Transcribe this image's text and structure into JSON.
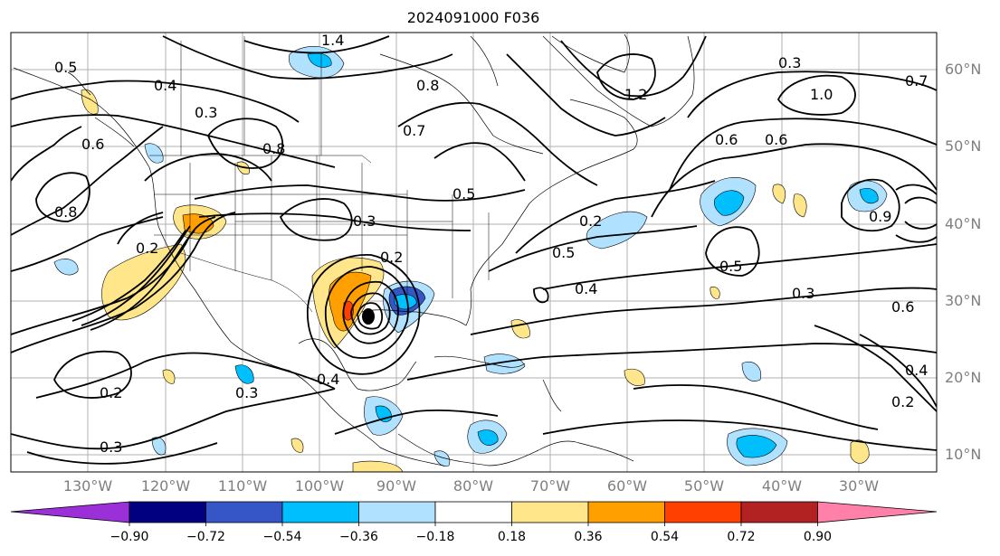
{
  "title": "2024091000 F036",
  "lat_labels": [
    "60°N",
    "50°N",
    "40°N",
    "30°N",
    "20°N",
    "10°N"
  ],
  "lon_labels": [
    "130°W",
    "120°W",
    "110°W",
    "100°W",
    "90°W",
    "80°W",
    "70°W",
    "60°W",
    "50°W",
    "40°W",
    "30°W"
  ],
  "colorbar": {
    "ticks": [
      "−0.90",
      "−0.72",
      "−0.54",
      "−0.36",
      "−0.18",
      "0.18",
      "0.36",
      "0.54",
      "0.72",
      "0.90"
    ],
    "colors": [
      "#9b30d9",
      "#000080",
      "#3656c8",
      "#00bfff",
      "#b0e2ff",
      "#ffffff",
      "#ffe68a",
      "#ff9f00",
      "#ff4000",
      "#b22222",
      "#ff80a8"
    ]
  },
  "contour_labels": [
    "1.4",
    "0.8",
    "0.5",
    "0.4",
    "0.3",
    "0.6",
    "0.8",
    "0.7",
    "1.0",
    "0.6",
    "0.5",
    "0.3",
    "0.2",
    "0.4",
    "0.2",
    "0.3",
    "0.2",
    "0.5",
    "0.4",
    "0.6",
    "0.7",
    "1.2",
    "0.9",
    "0.5",
    "0.3",
    "0.6",
    "0.2",
    "0.4",
    "0.3",
    "0.8",
    "0.2",
    "0.3"
  ]
}
